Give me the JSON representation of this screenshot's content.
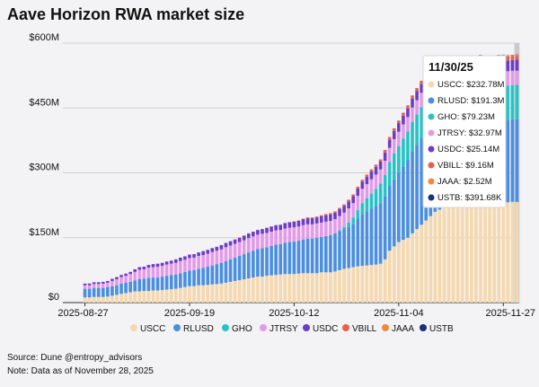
{
  "title": "Aave Horizon RWA market size",
  "source": "Source: Dune @entropy_advisors",
  "note": "Note: Data as of November 28, 2025",
  "tooltip": {
    "date": "11/30/25",
    "rows": [
      {
        "label": "USCC: $232.78M",
        "color": "#f6d8ad"
      },
      {
        "label": "RLUSD: $191.3M",
        "color": "#4a8fe0"
      },
      {
        "label": "GHO: $79.23M",
        "color": "#26c4c6"
      },
      {
        "label": "JTRSY: $32.97M",
        "color": "#e49ae8"
      },
      {
        "label": "USDC: $25.14M",
        "color": "#6e3cc6"
      },
      {
        "label": "VBILL: $9.16M",
        "color": "#e7614a"
      },
      {
        "label": "JAAA: $2.52M",
        "color": "#ef8a3b"
      },
      {
        "label": "USTB: $391.68K",
        "color": "#1b2f7a"
      }
    ]
  },
  "chart_data": {
    "type": "bar",
    "stacked": true,
    "title": "Aave Horizon RWA market size",
    "xlabel": "",
    "ylabel": "",
    "ylim": [
      0,
      600
    ],
    "y_unit": "$M",
    "y_ticks": [
      0,
      150,
      300,
      450,
      600
    ],
    "y_tick_labels": [
      "$0",
      "$150M",
      "$300M",
      "$450M",
      "$600M"
    ],
    "x_tick_labels": [
      "2025-08-27",
      "2025-09-19",
      "2025-10-12",
      "2025-11-04",
      "2025-11-27"
    ],
    "x_tick_indices": [
      0,
      23,
      46,
      69,
      92
    ],
    "categories": [
      "2025-08-27",
      "2025-08-28",
      "2025-08-29",
      "2025-08-30",
      "2025-08-31",
      "2025-09-01",
      "2025-09-02",
      "2025-09-03",
      "2025-09-04",
      "2025-09-05",
      "2025-09-06",
      "2025-09-07",
      "2025-09-08",
      "2025-09-09",
      "2025-09-10",
      "2025-09-11",
      "2025-09-12",
      "2025-09-13",
      "2025-09-14",
      "2025-09-15",
      "2025-09-16",
      "2025-09-17",
      "2025-09-18",
      "2025-09-19",
      "2025-09-20",
      "2025-09-21",
      "2025-09-22",
      "2025-09-23",
      "2025-09-24",
      "2025-09-25",
      "2025-09-26",
      "2025-09-27",
      "2025-09-28",
      "2025-09-29",
      "2025-09-30",
      "2025-10-01",
      "2025-10-02",
      "2025-10-03",
      "2025-10-04",
      "2025-10-05",
      "2025-10-06",
      "2025-10-07",
      "2025-10-08",
      "2025-10-09",
      "2025-10-10",
      "2025-10-11",
      "2025-10-12",
      "2025-10-13",
      "2025-10-14",
      "2025-10-15",
      "2025-10-16",
      "2025-10-17",
      "2025-10-18",
      "2025-10-19",
      "2025-10-20",
      "2025-10-21",
      "2025-10-22",
      "2025-10-23",
      "2025-10-24",
      "2025-10-25",
      "2025-10-26",
      "2025-10-27",
      "2025-10-28",
      "2025-10-29",
      "2025-10-30",
      "2025-10-31",
      "2025-11-01",
      "2025-11-02",
      "2025-11-03",
      "2025-11-04",
      "2025-11-05",
      "2025-11-06",
      "2025-11-07",
      "2025-11-08",
      "2025-11-09",
      "2025-11-10",
      "2025-11-11",
      "2025-11-12",
      "2025-11-13",
      "2025-11-14",
      "2025-11-15",
      "2025-11-16",
      "2025-11-17",
      "2025-11-18",
      "2025-11-19",
      "2025-11-20",
      "2025-11-21",
      "2025-11-22",
      "2025-11-23",
      "2025-11-24",
      "2025-11-25",
      "2025-11-26",
      "2025-11-27",
      "2025-11-28",
      "2025-11-29",
      "2025-11-30"
    ],
    "series": [
      {
        "name": "USCC",
        "color": "#f6d8ad",
        "values": [
          12,
          12,
          13,
          13,
          13,
          14,
          16,
          18,
          20,
          22,
          24,
          26,
          26,
          27,
          27,
          28,
          28,
          29,
          30,
          31,
          32,
          34,
          36,
          38,
          38,
          40,
          40,
          41,
          42,
          43,
          44,
          46,
          48,
          50,
          52,
          54,
          56,
          58,
          60,
          60,
          62,
          63,
          64,
          65,
          66,
          66,
          66,
          67,
          68,
          68,
          68,
          68,
          70,
          70,
          70,
          72,
          75,
          78,
          80,
          82,
          84,
          85,
          86,
          87,
          88,
          90,
          100,
          120,
          130,
          140,
          145,
          150,
          160,
          170,
          180,
          190,
          200,
          210,
          215,
          220,
          225,
          228,
          230,
          232,
          230,
          232,
          232,
          233,
          232,
          232,
          232,
          233,
          233,
          232,
          233,
          232.78
        ]
      },
      {
        "name": "RLUSD",
        "color": "#4a8fe0",
        "values": [
          20,
          20,
          21,
          21,
          21,
          22,
          22,
          22,
          24,
          24,
          24,
          25,
          28,
          28,
          30,
          30,
          30,
          31,
          32,
          33,
          33,
          34,
          35,
          36,
          37,
          38,
          40,
          42,
          44,
          46,
          48,
          50,
          52,
          54,
          56,
          58,
          60,
          62,
          64,
          66,
          66,
          68,
          70,
          70,
          72,
          74,
          75,
          76,
          78,
          80,
          80,
          82,
          82,
          84,
          86,
          88,
          90,
          92,
          95,
          100,
          110,
          120,
          125,
          130,
          135,
          140,
          145,
          150,
          155,
          160,
          170,
          180,
          190,
          195,
          200,
          210,
          210,
          212,
          215,
          200,
          195,
          193,
          192,
          191,
          191,
          191,
          190,
          191,
          191,
          191,
          191,
          191,
          191.3,
          191,
          191,
          191.3
        ]
      },
      {
        "name": "GHO",
        "color": "#26c4c6",
        "values": [
          0,
          0,
          0,
          0,
          0,
          0,
          0,
          0,
          0,
          0,
          0,
          0,
          0,
          0,
          0,
          0,
          0,
          0,
          0,
          0,
          0,
          0,
          0,
          0,
          0,
          0,
          0,
          0,
          0,
          0,
          0,
          0,
          0,
          0,
          0,
          0,
          0,
          0,
          0,
          0,
          0,
          0,
          0,
          0,
          0,
          0,
          0,
          0,
          0,
          0,
          0,
          0,
          0,
          0,
          0,
          0,
          2,
          5,
          10,
          15,
          20,
          25,
          30,
          35,
          40,
          45,
          50,
          55,
          60,
          62,
          64,
          66,
          68,
          70,
          72,
          74,
          75,
          76,
          77,
          78,
          78,
          79,
          79,
          79,
          79,
          79,
          79,
          79,
          79,
          79,
          79,
          79,
          79,
          79,
          79,
          79.23
        ]
      },
      {
        "name": "JTRSY",
        "color": "#e49ae8",
        "values": [
          8,
          8,
          9,
          9,
          10,
          10,
          12,
          14,
          15,
          16,
          18,
          20,
          22,
          22,
          24,
          24,
          25,
          25,
          26,
          26,
          27,
          28,
          28,
          29,
          29,
          30,
          30,
          30,
          31,
          31,
          31,
          32,
          32,
          32,
          32,
          32,
          33,
          33,
          33,
          33,
          33,
          33,
          33,
          33,
          33,
          33,
          33,
          33,
          33,
          33,
          33,
          33,
          33,
          33,
          33,
          33,
          33,
          33,
          33,
          33,
          33,
          33,
          33,
          33,
          33,
          33,
          33,
          33,
          33,
          33,
          33,
          33,
          33,
          33,
          33,
          33,
          33,
          33,
          33,
          33,
          33,
          33,
          33,
          33,
          33,
          33,
          33,
          33,
          33,
          33,
          33,
          33,
          33,
          33,
          33,
          32.97
        ]
      },
      {
        "name": "USDC",
        "color": "#6e3cc6",
        "values": [
          4,
          4,
          4,
          4,
          4,
          4,
          5,
          5,
          5,
          5,
          5,
          6,
          6,
          6,
          6,
          7,
          7,
          7,
          7,
          7,
          8,
          8,
          8,
          8,
          8,
          8,
          9,
          9,
          9,
          9,
          10,
          10,
          10,
          10,
          10,
          11,
          11,
          11,
          11,
          11,
          12,
          12,
          12,
          12,
          13,
          13,
          13,
          13,
          14,
          14,
          14,
          14,
          15,
          15,
          15,
          15,
          16,
          16,
          16,
          16,
          17,
          17,
          17,
          18,
          18,
          18,
          19,
          19,
          19,
          20,
          20,
          20,
          21,
          21,
          21,
          22,
          22,
          22,
          23,
          23,
          23,
          24,
          24,
          24,
          24,
          24,
          25,
          25,
          25,
          25,
          25,
          25,
          25,
          25,
          25,
          25.14
        ]
      },
      {
        "name": "VBILL",
        "color": "#e7614a",
        "values": [
          0,
          0,
          0,
          0,
          0,
          0,
          0,
          0,
          0,
          0,
          0,
          0,
          0,
          0,
          0,
          0,
          0,
          0,
          0,
          0,
          0,
          0,
          0,
          0,
          0,
          0,
          0,
          0,
          0,
          0,
          0,
          0,
          0,
          0,
          0,
          0,
          0,
          0,
          0,
          0,
          0,
          0,
          0,
          0,
          0,
          0,
          1,
          1,
          1,
          2,
          2,
          2,
          2,
          3,
          3,
          3,
          3,
          3,
          4,
          4,
          4,
          4,
          5,
          5,
          5,
          5,
          6,
          6,
          6,
          6,
          7,
          7,
          7,
          7,
          7,
          8,
          8,
          8,
          8,
          8,
          8,
          9,
          9,
          9,
          9,
          9,
          9,
          9,
          9,
          9,
          9,
          9,
          9,
          9,
          9,
          9.16
        ]
      },
      {
        "name": "JAAA",
        "color": "#ef8a3b",
        "values": [
          0,
          0,
          0,
          0,
          0,
          0,
          0,
          0,
          0,
          0,
          0,
          0,
          0,
          0,
          0,
          0,
          0,
          0,
          0,
          0,
          0,
          0,
          0,
          0,
          0,
          0,
          0,
          0,
          0,
          0,
          0,
          0,
          0,
          0,
          0,
          0,
          0,
          0,
          0,
          0,
          0,
          0,
          0,
          0,
          0,
          0,
          0,
          0,
          0,
          0,
          0,
          0,
          0,
          0,
          0,
          0,
          0,
          0,
          0,
          0,
          0,
          0,
          0,
          0,
          0,
          0,
          0,
          0,
          0,
          0,
          0,
          0,
          0,
          0,
          0,
          0,
          1,
          1,
          1,
          1,
          1.5,
          1.5,
          2,
          2,
          2,
          2,
          2,
          2.5,
          2.5,
          2.5,
          2.5,
          2.5,
          2.5,
          2.5,
          2.5,
          2.52
        ]
      },
      {
        "name": "USTB",
        "color": "#1b2f7a",
        "values": [
          0,
          0,
          0,
          0,
          0,
          0,
          0,
          0,
          0,
          0,
          0,
          0,
          0,
          0,
          0,
          0,
          0,
          0,
          0,
          0,
          0,
          0,
          0,
          0,
          0,
          0,
          0,
          0,
          0,
          0,
          0,
          0,
          0,
          0,
          0,
          0,
          0,
          0,
          0,
          0,
          0,
          0,
          0,
          0,
          0,
          0,
          0,
          0,
          0,
          0,
          0,
          0,
          0,
          0,
          0,
          0,
          0,
          0,
          0,
          0,
          0,
          0,
          0,
          0,
          0,
          0,
          0,
          0,
          0,
          0,
          0,
          0,
          0,
          0,
          0,
          0,
          0,
          0,
          0,
          0.2,
          0.2,
          0.3,
          0.3,
          0.3,
          0.3,
          0.4,
          0.4,
          0.4,
          0.4,
          0.4,
          0.4,
          0.4,
          0.4,
          0.4,
          0.4,
          0.39
        ]
      }
    ],
    "legend": [
      "USCC",
      "RLUSD",
      "GHO",
      "JTRSY",
      "USDC",
      "VBILL",
      "JAAA",
      "USTB"
    ],
    "legend_position": "bottom",
    "highlighted_category": "2025-11-30"
  }
}
